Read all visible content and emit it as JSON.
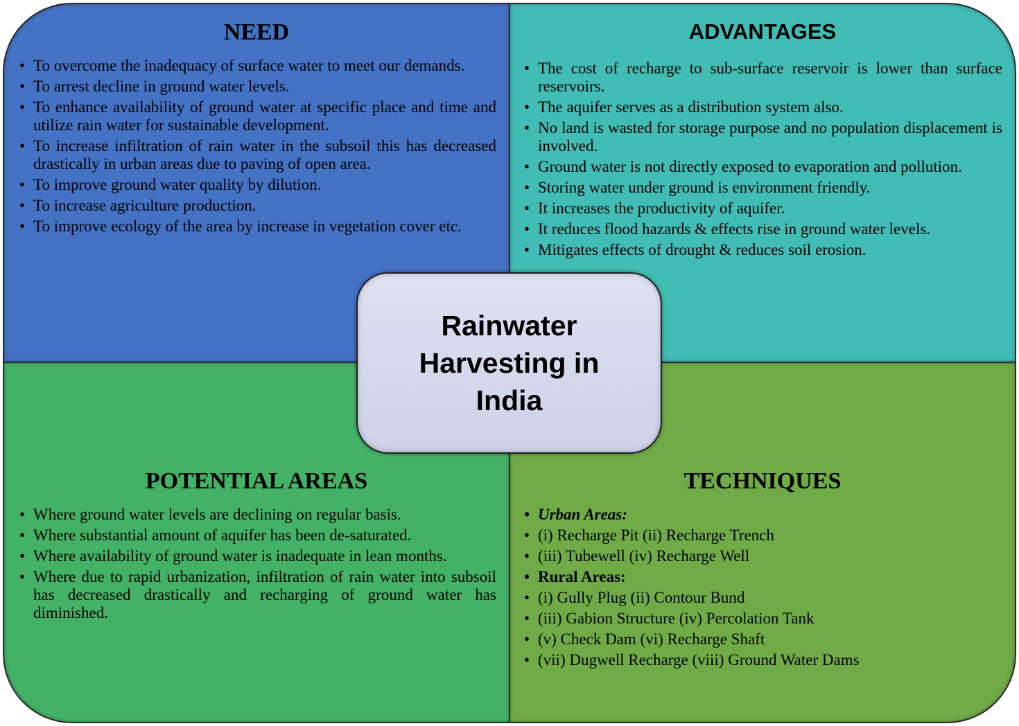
{
  "colors": {
    "need": "#4472c4",
    "advantages": "#41bdb5",
    "potential_areas": "#43b266",
    "techniques": "#71ab47",
    "center": "#cfd4ea"
  },
  "center": {
    "title": "Rainwater Harvesting in India"
  },
  "need": {
    "title": "NEED",
    "items": [
      "To overcome the inadequacy of surface water to meet our demands.",
      "To arrest decline in ground water levels.",
      "To enhance availability of ground water at specific place and time and utilize rain water for sustainable development.",
      "To increase infiltration of rain water in the subsoil this has decreased drastically in urban areas due to paving of open area.",
      "To improve ground water quality by dilution.",
      "To increase agriculture production.",
      "To improve ecology of the area by increase in vegetation cover etc."
    ]
  },
  "advantages": {
    "title": "ADVANTAGES",
    "items": [
      "The cost of recharge to sub-surface reservoir is lower than surface reservoirs.",
      "The aquifer serves as a distribution system also.",
      "No land is wasted for storage purpose and no population displacement is involved.",
      "Ground water is not directly exposed to evaporation and pollution.",
      "Storing water under ground is environment friendly.",
      "It increases the productivity of aquifer.",
      "It reduces flood hazards & effects rise in ground water levels.",
      "Mitigates effects of drought & reduces soil erosion."
    ]
  },
  "potential_areas": {
    "title": "POTENTIAL AREAS",
    "items": [
      "Where ground water levels are declining on regular basis.",
      "Where substantial amount of aquifer has been de-saturated.",
      "Where availability of ground water is inadequate in lean months.",
      "Where due to rapid urbanization, infiltration of rain water into subsoil has decreased drastically and recharging of ground water has diminished."
    ]
  },
  "techniques": {
    "title": "TECHNIQUES",
    "urban_header": "Urban Areas:",
    "urban_items": [
      "(i) Recharge Pit  (ii) Recharge Trench",
      "(iii) Tubewell  (iv) Recharge Well"
    ],
    "rural_header": "Rural Areas:",
    "rural_items": [
      "(i) Gully Plug  (ii) Contour Bund",
      "(iii) Gabion Structure  (iv) Percolation Tank",
      "(v) Check Dam  (vi) Recharge Shaft",
      "(vii) Dugwell Recharge  (viii) Ground Water Dams"
    ]
  }
}
